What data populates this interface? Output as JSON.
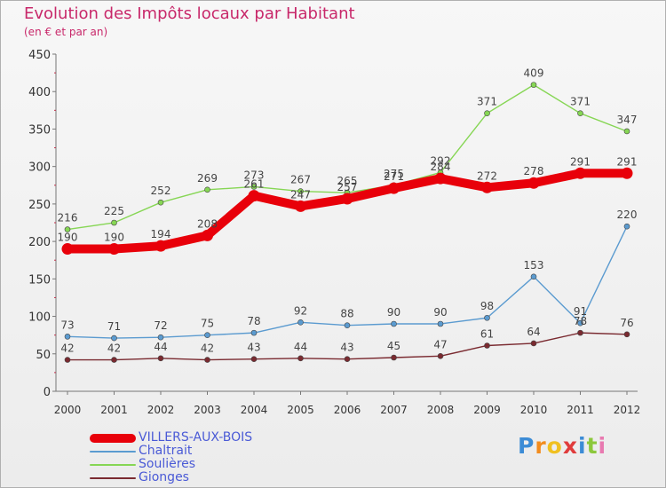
{
  "title": "Evolution des Impôts locaux par Habitant",
  "subtitle": "(en € et par an)",
  "logo": {
    "letters": [
      "P",
      "r",
      "o",
      "x",
      "i",
      "t",
      "i"
    ],
    "colors": [
      "#3c8cd6",
      "#f28c1e",
      "#f0c020",
      "#e03c3c",
      "#3c8cd6",
      "#8cc83c",
      "#e87ab0"
    ]
  },
  "chart_data": {
    "type": "line",
    "title": "Evolution des Impôts locaux par Habitant",
    "subtitle": "(en € et par an)",
    "xlabel": "",
    "ylabel": "",
    "x": [
      "2000",
      "2001",
      "2002",
      "2003",
      "2004",
      "2005",
      "2006",
      "2007",
      "2008",
      "2009",
      "2010",
      "2011",
      "2012"
    ],
    "ylim": [
      0,
      450
    ],
    "yticks": [
      0,
      50,
      100,
      150,
      200,
      250,
      300,
      350,
      400,
      450
    ],
    "grid": false,
    "legend_position": "bottom-left",
    "series": [
      {
        "name": "VILLERS-AUX-BOIS",
        "color": "#e8000a",
        "values": [
          190,
          190,
          194,
          208,
          261,
          247,
          257,
          271,
          284,
          272,
          278,
          291,
          291
        ]
      },
      {
        "name": "Chaltrait",
        "color": "#5b9bd0",
        "values": [
          73,
          71,
          72,
          75,
          78,
          92,
          88,
          90,
          90,
          98,
          153,
          91,
          220
        ]
      },
      {
        "name": "Soulières",
        "color": "#86d654",
        "values": [
          216,
          225,
          252,
          269,
          273,
          267,
          265,
          275,
          292,
          371,
          409,
          371,
          347
        ]
      },
      {
        "name": "Gionges",
        "color": "#7a2a30",
        "values": [
          42,
          42,
          44,
          42,
          43,
          44,
          43,
          45,
          47,
          61,
          64,
          78,
          76
        ]
      }
    ]
  }
}
